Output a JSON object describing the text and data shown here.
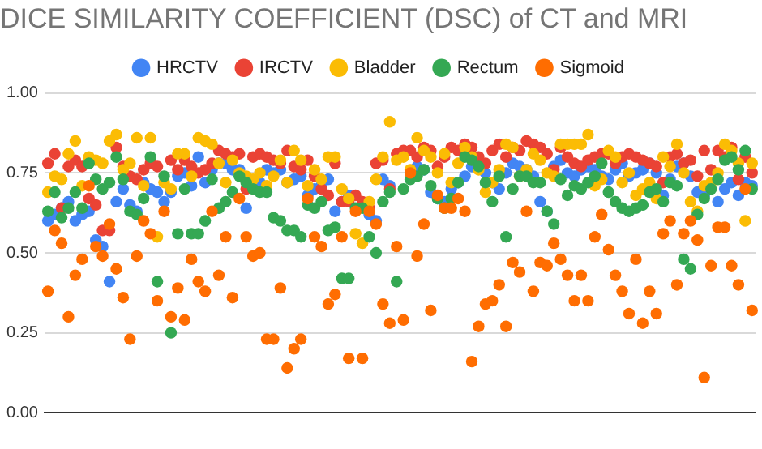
{
  "chart_data": {
    "type": "scatter",
    "title": "DICE SIMILARITY COEFFICIENT (DSC) of CT and MRI",
    "categories": [
      null,
      null,
      null,
      null,
      null,
      null,
      null,
      null,
      null,
      null,
      null,
      null,
      null,
      null,
      null,
      null,
      null,
      null,
      null,
      null,
      null,
      null,
      null,
      null,
      null,
      null,
      null,
      null,
      null,
      null,
      null,
      null,
      null,
      null,
      null,
      null,
      null,
      null,
      null,
      null,
      null,
      null,
      null,
      null,
      null,
      null,
      null,
      null,
      null,
      null,
      null,
      null,
      null,
      null,
      null,
      null,
      null,
      null,
      null,
      null,
      null,
      null,
      null,
      null,
      null,
      null,
      null,
      null,
      null,
      null,
      null,
      null,
      null,
      null,
      null,
      null,
      null,
      null,
      null,
      null,
      null,
      null,
      null,
      null,
      null,
      null,
      null,
      null,
      null,
      null,
      null,
      null,
      null,
      null,
      null,
      null,
      null,
      null,
      null,
      null,
      null,
      null,
      null,
      null
    ],
    "series": [
      {
        "name": "HRCTV",
        "color": "#4285f4",
        "values": [
          0.6,
          0.62,
          0.64,
          0.66,
          0.6,
          0.62,
          0.63,
          0.54,
          0.52,
          0.41,
          0.66,
          0.7,
          0.65,
          0.63,
          0.72,
          0.7,
          0.69,
          0.66,
          0.69,
          0.74,
          0.75,
          0.71,
          0.8,
          0.72,
          0.76,
          0.78,
          0.78,
          0.76,
          0.76,
          0.64,
          null,
          0.72,
          0.76,
          0.75,
          0.76,
          0.72,
          0.73,
          0.74,
          0.68,
          0.7,
          0.71,
          0.73,
          0.63,
          0.66,
          0.68,
          null,
          null,
          0.62,
          0.6,
          0.73,
          0.71,
          null,
          null,
          null,
          0.77,
          0.76,
          0.69,
          0.67,
          0.66,
          0.7,
          0.72,
          0.74,
          0.77,
          null,
          0.75,
          0.72,
          0.7,
          0.75,
          0.78,
          0.77,
          0.76,
          0.74,
          0.66,
          0.63,
          0.77,
          0.79,
          0.75,
          0.74,
          0.76,
          0.77,
          0.76,
          0.74,
          0.73,
          0.76,
          0.78,
          0.74,
          0.75,
          0.76,
          0.78,
          0.75,
          0.68,
          0.73,
          0.77,
          0.78,
          0.74,
          0.69,
          0.68,
          null,
          0.66,
          0.7,
          0.72,
          0.68,
          0.72,
          0.71
        ]
      },
      {
        "name": "IRCTV",
        "color": "#ea4335",
        "values": [
          0.78,
          0.81,
          0.64,
          0.77,
          0.79,
          0.77,
          0.67,
          0.65,
          0.57,
          0.57,
          0.83,
          0.77,
          0.74,
          0.73,
          0.76,
          0.78,
          0.77,
          null,
          0.79,
          0.76,
          0.79,
          0.77,
          0.75,
          0.76,
          0.78,
          0.82,
          0.81,
          0.8,
          0.81,
          0.7,
          0.8,
          0.81,
          0.8,
          0.79,
          0.78,
          0.82,
          0.77,
          0.76,
          0.79,
          0.74,
          0.7,
          0.68,
          0.78,
          0.66,
          0.66,
          0.68,
          0.66,
          0.64,
          0.78,
          0.79,
          0.7,
          0.81,
          0.82,
          0.82,
          0.8,
          0.83,
          0.82,
          0.77,
          0.8,
          0.83,
          0.82,
          0.84,
          0.83,
          0.8,
          0.78,
          0.82,
          0.84,
          0.8,
          0.83,
          0.82,
          0.85,
          0.84,
          0.83,
          0.81,
          0.76,
          0.83,
          0.8,
          0.78,
          0.77,
          0.79,
          0.8,
          0.81,
          0.81,
          0.78,
          0.8,
          0.81,
          0.8,
          0.79,
          0.78,
          0.77,
          0.72,
          0.8,
          0.81,
          0.78,
          0.79,
          0.74,
          0.82,
          0.76,
          0.82,
          0.8,
          0.83,
          0.73,
          0.8,
          0.75
        ]
      },
      {
        "name": "Bladder",
        "color": "#fbbc04",
        "values": [
          0.69,
          0.74,
          0.73,
          0.81,
          0.85,
          0.71,
          0.8,
          0.79,
          0.78,
          0.85,
          0.87,
          0.76,
          0.78,
          0.86,
          0.71,
          0.86,
          0.55,
          0.72,
          0.7,
          0.81,
          0.81,
          0.74,
          0.86,
          0.85,
          0.84,
          0.78,
          0.72,
          0.79,
          0.75,
          0.74,
          0.73,
          0.75,
          0.71,
          0.74,
          0.79,
          0.72,
          0.82,
          0.79,
          0.71,
          0.76,
          0.73,
          0.8,
          0.8,
          0.7,
          0.67,
          0.56,
          0.53,
          0.66,
          0.73,
          0.8,
          0.91,
          0.79,
          0.8,
          0.76,
          0.86,
          0.82,
          0.8,
          0.75,
          0.81,
          0.72,
          0.78,
          0.83,
          0.8,
          0.76,
          0.69,
          0.72,
          0.76,
          0.84,
          0.83,
          0.74,
          0.76,
          0.81,
          0.79,
          0.75,
          0.74,
          0.84,
          0.84,
          0.84,
          0.84,
          0.87,
          0.71,
          0.73,
          0.82,
          0.8,
          0.72,
          0.75,
          0.68,
          0.7,
          0.72,
          0.67,
          0.8,
          0.77,
          0.84,
          0.75,
          0.66,
          0.63,
          0.71,
          0.72,
          0.75,
          0.84,
          0.82,
          0.78,
          0.6,
          0.78
        ]
      },
      {
        "name": "Rectum",
        "color": "#34a853",
        "values": [
          0.63,
          0.69,
          0.61,
          0.64,
          0.69,
          0.64,
          0.78,
          0.73,
          0.7,
          0.72,
          0.8,
          0.73,
          0.63,
          0.62,
          0.67,
          0.8,
          0.41,
          0.74,
          0.25,
          0.56,
          0.7,
          0.56,
          0.56,
          0.6,
          0.73,
          0.64,
          0.66,
          0.69,
          0.74,
          0.72,
          0.7,
          0.69,
          0.69,
          0.61,
          0.6,
          0.57,
          0.57,
          0.55,
          0.65,
          0.64,
          0.66,
          0.57,
          0.58,
          0.42,
          0.42,
          0.64,
          0.64,
          0.55,
          0.5,
          0.66,
          0.69,
          0.41,
          0.7,
          0.73,
          0.74,
          0.76,
          0.71,
          0.67,
          0.64,
          0.67,
          0.72,
          0.8,
          0.79,
          0.77,
          0.72,
          0.66,
          0.74,
          0.55,
          0.7,
          0.74,
          0.74,
          0.72,
          0.72,
          0.63,
          0.59,
          0.73,
          0.68,
          0.71,
          0.7,
          0.72,
          0.74,
          0.78,
          0.69,
          0.66,
          0.64,
          0.63,
          0.64,
          0.65,
          0.69,
          0.7,
          0.66,
          0.72,
          0.71,
          0.48,
          0.45,
          0.62,
          0.67,
          0.7,
          0.73,
          0.79,
          0.8,
          0.76,
          0.82,
          0.7
        ]
      },
      {
        "name": "Sigmoid",
        "color": "#ff6d01",
        "values": [
          0.38,
          0.57,
          0.53,
          0.3,
          0.43,
          0.48,
          0.71,
          0.52,
          0.49,
          0.59,
          0.45,
          0.36,
          0.23,
          0.49,
          0.6,
          0.56,
          0.35,
          0.63,
          0.3,
          0.39,
          0.29,
          0.48,
          0.41,
          0.38,
          0.63,
          0.43,
          0.55,
          0.36,
          0.67,
          0.55,
          0.49,
          0.5,
          0.23,
          0.23,
          0.39,
          0.14,
          0.2,
          0.23,
          0.67,
          0.55,
          0.52,
          0.34,
          0.37,
          0.55,
          0.17,
          0.63,
          0.17,
          0.63,
          0.59,
          0.34,
          0.28,
          0.52,
          0.29,
          0.75,
          0.49,
          0.59,
          0.32,
          0.68,
          0.64,
          0.64,
          0.67,
          0.63,
          0.16,
          0.27,
          0.34,
          0.35,
          0.4,
          0.27,
          0.47,
          0.44,
          0.63,
          0.38,
          0.47,
          0.46,
          0.53,
          0.48,
          0.43,
          0.35,
          0.43,
          0.35,
          0.55,
          0.62,
          0.51,
          0.43,
          0.38,
          0.31,
          0.48,
          0.28,
          0.38,
          0.31,
          0.56,
          0.6,
          0.4,
          0.56,
          0.6,
          0.54,
          0.11,
          0.46,
          0.58,
          0.58,
          0.46,
          0.4,
          0.7,
          0.32
        ]
      }
    ],
    "ylim": [
      0,
      1
    ],
    "yticks": [
      {
        "value": 0,
        "label": "0.00"
      },
      {
        "value": 0.25,
        "label": "0.25"
      },
      {
        "value": 0.5,
        "label": "0.50"
      },
      {
        "value": 0.75,
        "label": "0.75"
      },
      {
        "value": 1,
        "label": "1.00"
      }
    ],
    "grid": "y",
    "legend": "top",
    "marker": "circle"
  }
}
